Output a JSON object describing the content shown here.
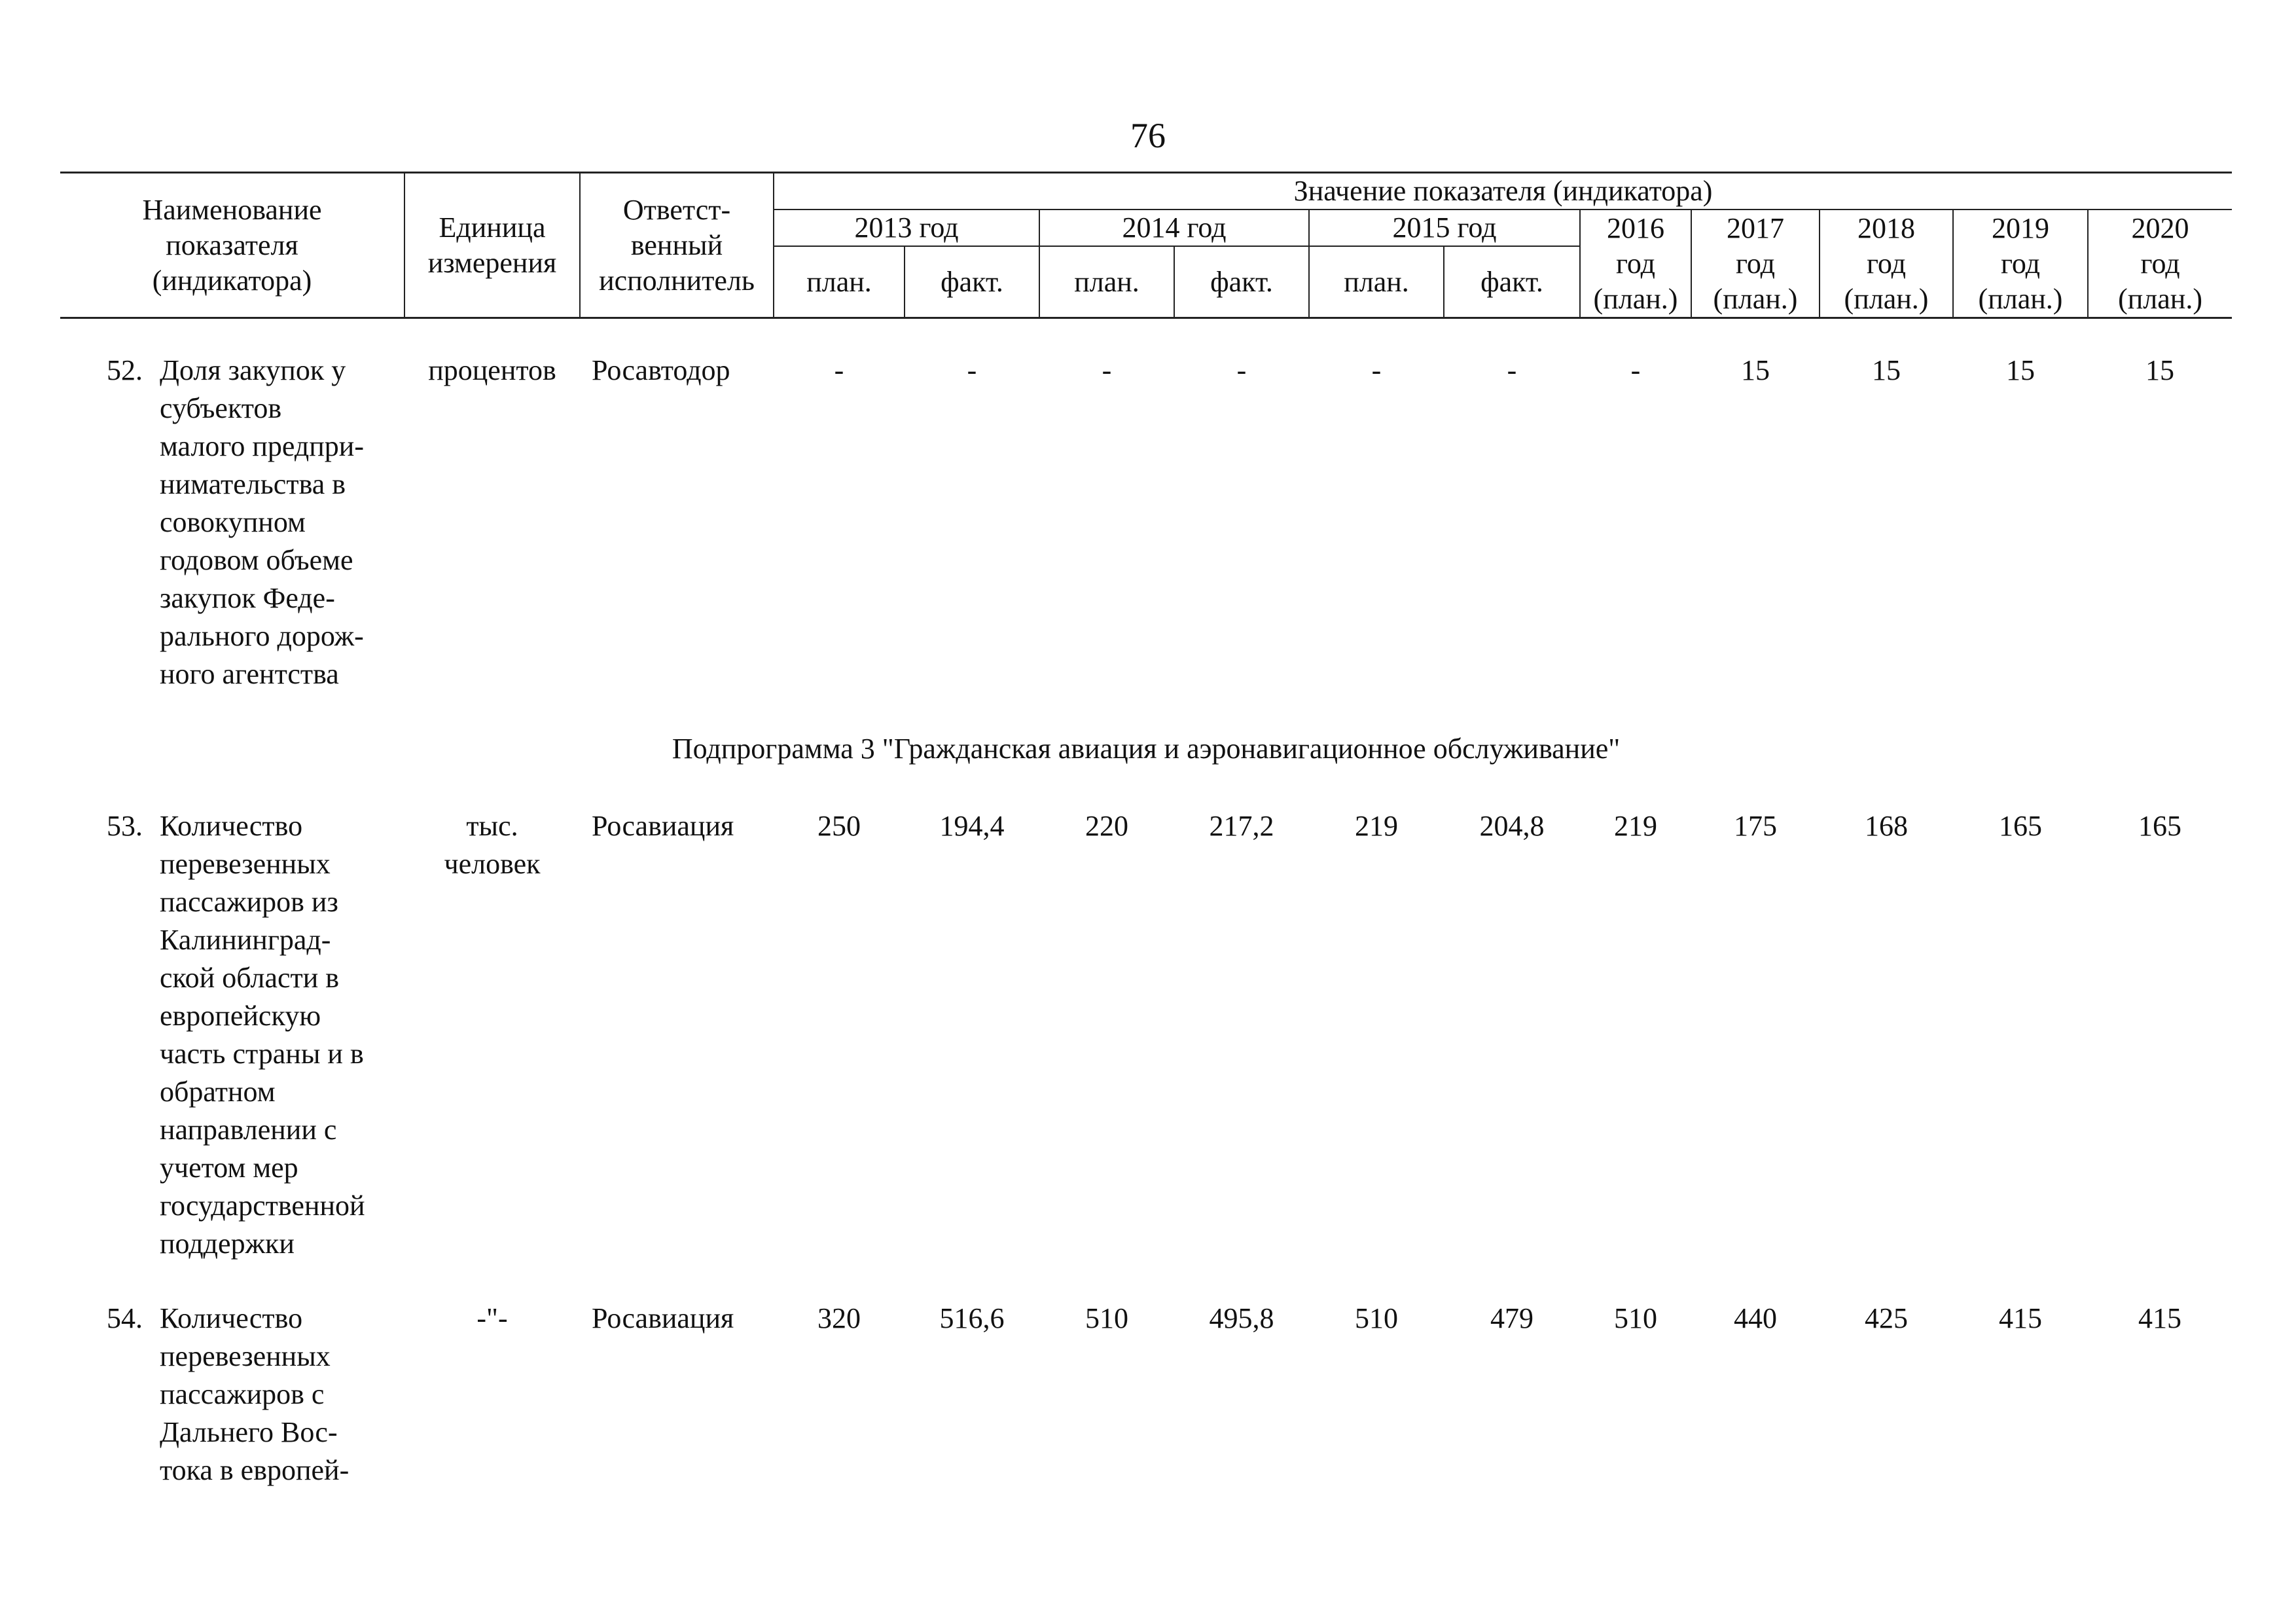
{
  "page_number": "76",
  "header": {
    "name_col": [
      "Наименование",
      "показателя",
      "(индикатора)"
    ],
    "unit_col": [
      "Единица",
      "измерения"
    ],
    "exec_col": [
      "Ответст-",
      "венный",
      "исполнитель"
    ],
    "value_group": "Значение показателя (индикатора)",
    "years_split": [
      "2013 год",
      "2014 год",
      "2015 год"
    ],
    "plan_label": "план.",
    "fact_label": "факт.",
    "years_single": [
      {
        "year": "2016",
        "god": "год",
        "type": "(план.)"
      },
      {
        "year": "2017",
        "god": "год",
        "type": "(план.)"
      },
      {
        "year": "2018",
        "god": "год",
        "type": "(план.)"
      },
      {
        "year": "2019",
        "god": "год",
        "type": "(план.)"
      },
      {
        "year": "2020",
        "god": "год",
        "type": "(план.)"
      }
    ]
  },
  "rows": [
    {
      "num": "52.",
      "name_lines": [
        "Доля закупок у",
        "субъектов",
        "малого предпри-",
        "нимательства в",
        "совокупном",
        "годовом объеме",
        "закупок Феде-",
        "рального дорож-",
        "ного агентства"
      ],
      "unit_lines": [
        "процентов"
      ],
      "executor": "Росавтодор",
      "values": [
        "-",
        "-",
        "-",
        "-",
        "-",
        "-",
        "-",
        "15",
        "15",
        "15",
        "15"
      ]
    }
  ],
  "subprogram_heading": "Подпрограмма 3 \"Гражданская авиация и аэронавигационное обслуживание\"",
  "rows2": [
    {
      "num": "53.",
      "name_lines": [
        "Количество",
        "перевезенных",
        "пассажиров из",
        "Калининград-",
        "ской области в",
        "европейскую",
        "часть страны и в",
        "обратном",
        "направлении с",
        "учетом мер",
        "государственной",
        "поддержки"
      ],
      "unit_lines": [
        "тыс.",
        "человек"
      ],
      "executor": "Росавиация",
      "values": [
        "250",
        "194,4",
        "220",
        "217,2",
        "219",
        "204,8",
        "219",
        "175",
        "168",
        "165",
        "165"
      ]
    },
    {
      "num": "54.",
      "name_lines": [
        "Количество",
        "перевезенных",
        "пассажиров с",
        "Дальнего Вос-",
        "тока в европей-"
      ],
      "unit_lines": [
        "-\"-"
      ],
      "executor": "Росавиация",
      "values": [
        "320",
        "516,6",
        "510",
        "495,8",
        "510",
        "479",
        "510",
        "440",
        "425",
        "415",
        "415"
      ]
    }
  ]
}
